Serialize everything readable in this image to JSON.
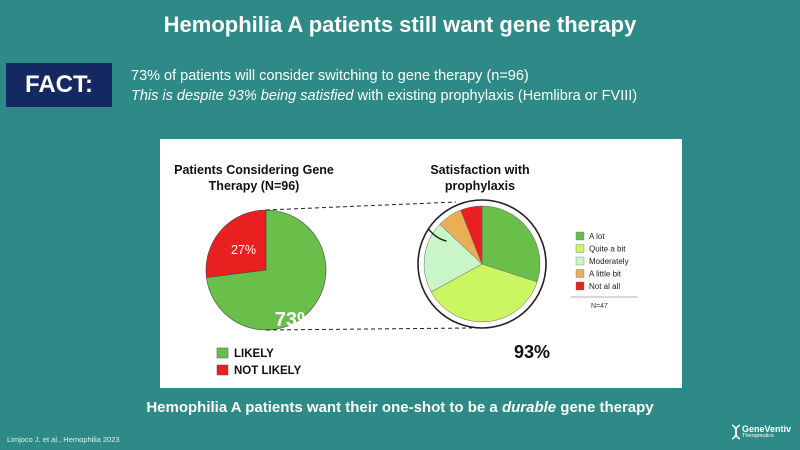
{
  "slide": {
    "title": "Hemophilia A patients still want gene therapy",
    "fact_label": "FACT:",
    "fact_line1": "73% of patients will consider switching to gene therapy (n=96)",
    "fact_line2_italic": "This is despite 93% being satisfied",
    "fact_line2_rest": " with existing prophylaxis (Hemlibra or FVIII)",
    "bottom_prefix": "Hemophilia A patients want their one-shot to be a ",
    "bottom_italic": "durable",
    "bottom_suffix": " gene therapy",
    "citation": "Limjoco J. et al., Hemophilia 2023",
    "logo_name": "GeneVentiv",
    "logo_sub": "Therapeutics"
  },
  "colors": {
    "background": "#2e8a87",
    "fact_box": "#142862",
    "likely": "#6abf4b",
    "not_likely": "#e8201f"
  },
  "chart_data": [
    {
      "type": "pie",
      "title": "Patients Considering Gene Therapy (N=96)",
      "title_lines": [
        "Patients Considering Gene",
        "Therapy (N=96)"
      ],
      "slices": [
        {
          "label": "LIKELY",
          "value": 73,
          "display": "73%",
          "color": "#6abf4b"
        },
        {
          "label": "NOT LIKELY",
          "value": 27,
          "display": "27%",
          "color": "#e8201f"
        }
      ],
      "legend": "bottom"
    },
    {
      "type": "pie",
      "title": "Satisfaction with prophylaxis",
      "title_lines": [
        "Satisfaction with",
        "prophylaxis"
      ],
      "slices": [
        {
          "label": "A lot",
          "value": 30,
          "color": "#6abf4b"
        },
        {
          "label": "Quite a bit",
          "value": 37,
          "color": "#ccf562"
        },
        {
          "label": "Moderately",
          "value": 20,
          "color": "#c9f6c8"
        },
        {
          "label": "A little bit",
          "value": 7,
          "color": "#e9ae56"
        },
        {
          "label": "Not al all",
          "value": 6,
          "color": "#e8201f"
        }
      ],
      "callout": "93%",
      "legend": "right",
      "legend_note": "N=47"
    }
  ]
}
